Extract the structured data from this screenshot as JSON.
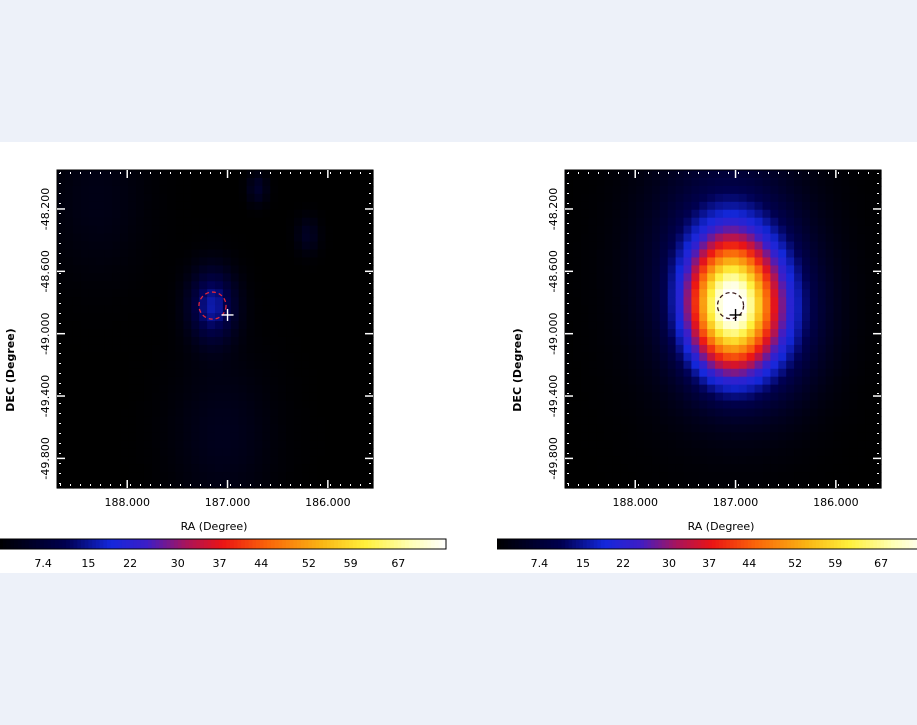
{
  "chart_data": [
    {
      "type": "heatmap",
      "title": "",
      "xlabel": "RA (Degree)",
      "ylabel": "DEC (Degree)",
      "xlim": [
        188.7,
        185.55
      ],
      "ylim": [
        -49.99,
        -47.95
      ],
      "x_ticks": [
        188.0,
        187.0,
        186.0
      ],
      "x_tick_labels": [
        "188.000",
        "187.000",
        "186.000"
      ],
      "y_ticks": [
        -48.2,
        -48.6,
        -49.0,
        -49.4,
        -49.8
      ],
      "y_tick_labels": [
        "-48.200",
        "-48.600",
        "-49.000",
        "-49.400",
        "-49.800"
      ],
      "colorbar": {
        "tick_labels": [
          "7.4",
          "15",
          "22",
          "30",
          "37",
          "44",
          "52",
          "59",
          "67"
        ],
        "tick_values": [
          7.4,
          15,
          22,
          30,
          37,
          44,
          52,
          59,
          67
        ],
        "range": [
          0,
          75
        ]
      },
      "peak_value": 16,
      "sources": [
        {
          "ra": 187.15,
          "dec": -48.82,
          "amplitude": 16,
          "sigma_deg": 0.16
        },
        {
          "ra": 186.7,
          "dec": -48.07,
          "amplitude": 6,
          "sigma_deg": 0.07
        },
        {
          "ra": 186.2,
          "dec": -48.37,
          "amplitude": 5,
          "sigma_deg": 0.08
        },
        {
          "ra": 188.3,
          "dec": -48.15,
          "amplitude": 3,
          "sigma_deg": 0.35
        },
        {
          "ra": 187.05,
          "dec": -49.65,
          "amplitude": 4,
          "sigma_deg": 0.35
        }
      ],
      "circle": {
        "ra": 187.15,
        "dec": -48.82,
        "radius_deg": 0.135,
        "color": "#e0263a",
        "style": "dashed"
      },
      "marker": {
        "ra": 187.0,
        "dec": -48.88,
        "symbol": "+",
        "color": "#ffffff"
      }
    },
    {
      "type": "heatmap",
      "title": "",
      "xlabel": "RA (Degree)",
      "ylabel": "DEC (Degree)",
      "xlim": [
        188.7,
        185.55
      ],
      "ylim": [
        -49.99,
        -47.95
      ],
      "x_ticks": [
        188.0,
        187.0,
        186.0
      ],
      "x_tick_labels": [
        "188.000",
        "187.000",
        "186.000"
      ],
      "y_ticks": [
        -48.2,
        -48.6,
        -49.0,
        -49.4,
        -49.8
      ],
      "y_tick_labels": [
        "-48.200",
        "-48.600",
        "-49.000",
        "-49.400",
        "-49.800"
      ],
      "colorbar": {
        "tick_labels": [
          "7.4",
          "15",
          "22",
          "30",
          "37",
          "44",
          "52",
          "59",
          "67"
        ],
        "tick_values": [
          7.4,
          15,
          22,
          30,
          37,
          44,
          52,
          59,
          67
        ],
        "range": [
          0,
          75
        ]
      },
      "peak_value": 75,
      "sources": [
        {
          "ra": 187.05,
          "dec": -48.82,
          "amplitude": 62,
          "sigma_deg": 0.28
        },
        {
          "ra": 187.1,
          "dec": -48.6,
          "amplitude": 14,
          "sigma_deg": 0.55
        },
        {
          "ra": 186.6,
          "dec": -48.9,
          "amplitude": 10,
          "sigma_deg": 0.35
        }
      ],
      "circle": {
        "ra": 187.05,
        "dec": -48.82,
        "radius_deg": 0.13,
        "color": "#3a1a1a",
        "style": "dashed"
      },
      "marker": {
        "ra": 187.0,
        "dec": -48.88,
        "symbol": "+",
        "color": "#000000"
      }
    }
  ]
}
